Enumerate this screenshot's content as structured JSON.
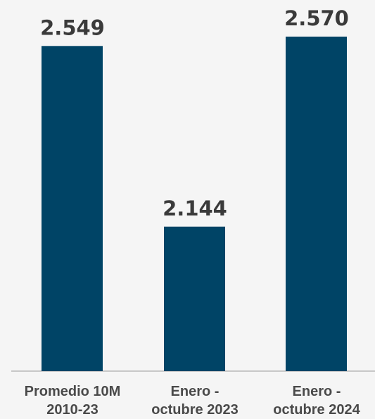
{
  "chart_data": {
    "type": "bar",
    "categories": [
      [
        "Promedio 10M",
        "2010-23"
      ],
      [
        "Enero -",
        "octubre 2023"
      ],
      [
        "Enero -",
        "octubre 2024"
      ]
    ],
    "values": [
      2549,
      2144,
      2570
    ],
    "value_labels": [
      "2.549",
      "2.144",
      "2.570"
    ],
    "title": "",
    "xlabel": "",
    "ylabel": "",
    "grid": false,
    "legend": "none",
    "bar_color": "#004466"
  }
}
